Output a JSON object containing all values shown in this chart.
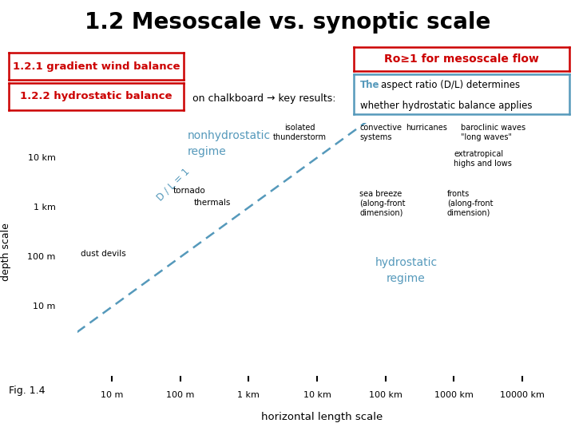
{
  "title": "1.2 Mesoscale vs. synoptic scale",
  "title_fontsize": 20,
  "bg_color": "#ffffff",
  "box1_text": "1.2.1 gradient wind balance",
  "box2_text": "1.2.2 hydrostatic balance",
  "box_color": "#cc0000",
  "chalkboard_text": "on chalkboard → key results:",
  "ro_text": "Ro≥1 for mesoscale flow",
  "xlabel": "horizontal length scale",
  "ylabel": "depth scale",
  "line_color": "#5599bb",
  "line_label": "D / L = 1",
  "nonhydro_label": "nonhydrostatic\nregime",
  "hydro_label": "hydrostatic\nregime",
  "x_tick_labels": [
    "10 m",
    "100 m",
    "1 km",
    "10 km",
    "100 km",
    "1000 km",
    "10000 km"
  ],
  "y_tick_labels": [
    "10 m",
    "100 m",
    "1 km",
    "10 km"
  ],
  "box_text_color_left": "#cc0000",
  "aspect_the_color": "#5599bb",
  "aspect_rest": " aspect ratio (D/L) determines\nwhether hydrostatic balance applies"
}
